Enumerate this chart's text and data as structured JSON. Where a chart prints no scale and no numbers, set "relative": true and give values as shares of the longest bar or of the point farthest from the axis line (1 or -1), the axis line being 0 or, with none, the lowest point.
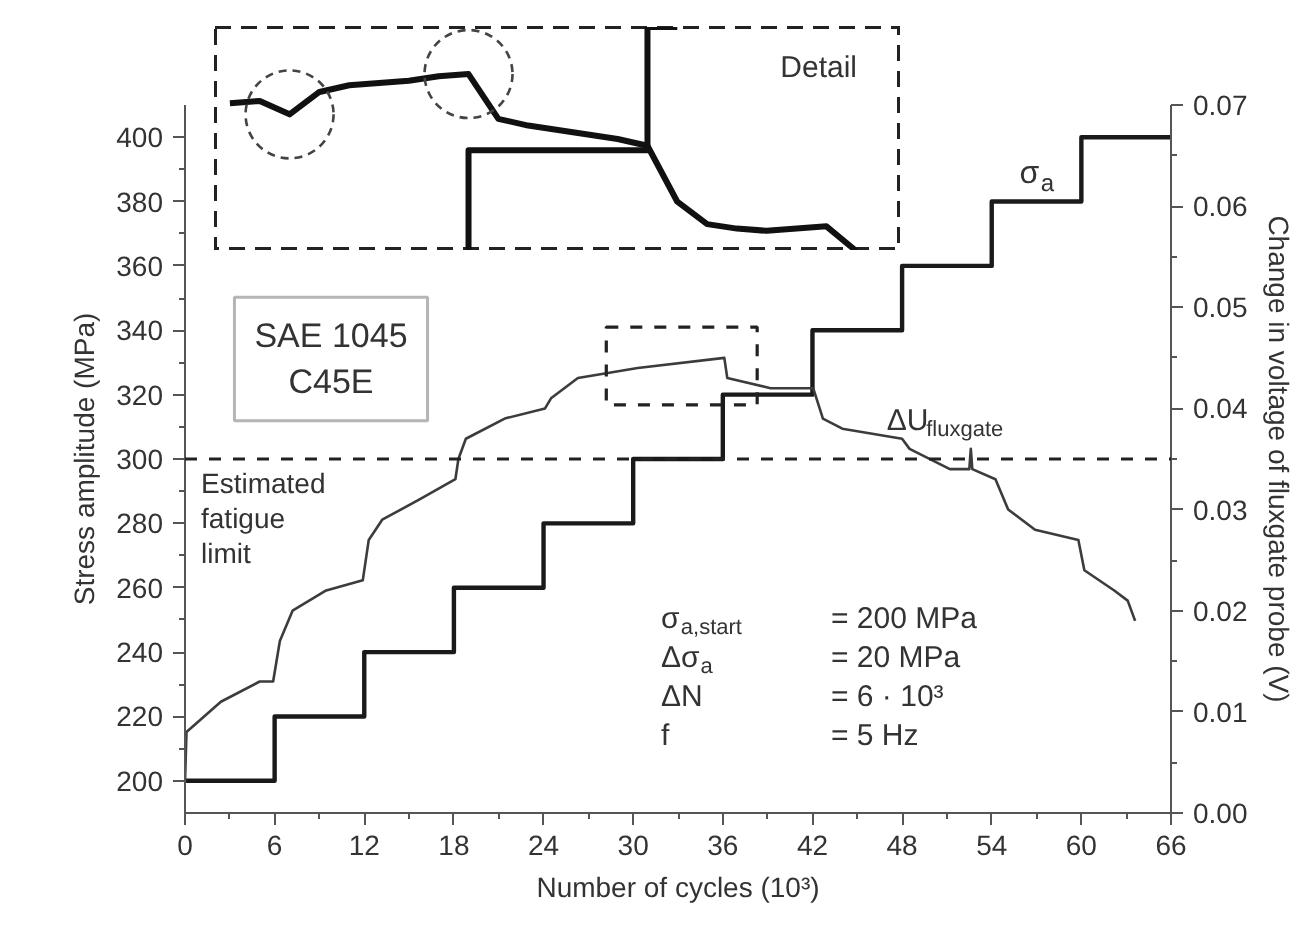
{
  "chart_data": [
    {
      "type": "line",
      "xlabel": "Number of cycles (10³)",
      "ylabel": "Stress amplitude (MPa)",
      "y2label": "Change in voltage of fluxgate probe (V)",
      "xlim": [
        0,
        66
      ],
      "xticks": [
        0,
        6,
        12,
        18,
        24,
        30,
        36,
        42,
        48,
        54,
        60,
        66
      ],
      "ylim": [
        190,
        410
      ],
      "yticks": [
        200,
        220,
        240,
        260,
        280,
        300,
        320,
        340,
        360,
        380,
        400
      ],
      "y2lim": [
        0,
        0.07
      ],
      "y2ticks": [
        {
          "value": 0,
          "label": "0.00"
        },
        0.01,
        0.02,
        0.03,
        0.04,
        0.05,
        0.06,
        0.07
      ],
      "marker": "none",
      "series": [
        {
          "name": "σ$_{a}$",
          "type": "step",
          "color": "#1a1a1a",
          "x": [
            0,
            6,
            12,
            18,
            24,
            30,
            36,
            42,
            48,
            54,
            60,
            66
          ],
          "values": [
            200,
            220,
            240,
            260,
            280,
            300,
            320,
            340,
            360,
            380,
            400,
            400
          ]
        },
        {
          "name": "ΔU$_{fluxgate}$",
          "axis": "y2",
          "color": "#3c3c3c",
          "x": [
            0,
            0.1,
            2.4,
            5.0,
            5.9,
            6.35,
            7.2,
            9.45,
            11.9,
            12.3,
            13.2,
            15.7,
            18.1,
            18.3,
            18.8,
            21.4,
            24.1,
            24.5,
            26.3,
            30.3,
            36.1,
            36.3,
            39.2,
            42.05,
            42.7,
            44.0,
            48.0,
            48.5,
            51.2,
            52.5,
            52.6,
            52.7,
            54.25,
            55.1,
            56.9,
            59.8,
            60.2,
            62.2,
            63.1,
            63.6
          ],
          "values": [
            0.003,
            0.008,
            0.011,
            0.013,
            0.013,
            0.017,
            0.02,
            0.022,
            0.023,
            0.027,
            0.029,
            0.031,
            0.033,
            0.035,
            0.037,
            0.039,
            0.04,
            0.041,
            0.043,
            0.044,
            0.045,
            0.043,
            0.042,
            0.042,
            0.039,
            0.038,
            0.037,
            0.036,
            0.034,
            0.034,
            0.036,
            0.034,
            0.033,
            0.03,
            0.028,
            0.027,
            0.024,
            0.022,
            0.021,
            0.019
          ]
        }
      ],
      "ref_lines": [
        {
          "axis": "y",
          "value": 300,
          "label": "Estimated\nfatigue\nlimit",
          "line_style": "dashed",
          "color": "#222222"
        }
      ],
      "annotations": [
        "SAE 1045\nC45E",
        "σ$_{a,start}$ = 200 MPa",
        "Δσ$_{a}$ = 20 MPa",
        "ΔN = 6 · 10³",
        "f = 5 Hz"
      ]
    },
    {
      "type": "line",
      "title": "Detail",
      "relative": true,
      "tick_labels": false,
      "line_style": "solid",
      "categories": [
        null,
        null,
        null,
        null,
        null,
        null,
        null,
        null,
        null,
        null,
        null,
        null,
        null,
        null,
        null,
        null,
        null,
        null,
        null,
        null,
        null,
        null,
        null
      ],
      "series": [
        {
          "color": "#111111",
          "values": [
            0.66,
            0.67,
            0.61,
            0.71,
            0.74,
            0.75,
            0.76,
            0.78,
            0.79,
            0.59,
            0.56,
            0.54,
            0.52,
            0.5,
            0.47,
            0.22,
            0.12,
            0.1,
            0.09,
            0.1,
            0.11,
            0,
            null
          ]
        },
        {
          "type": "step",
          "color": "#111111",
          "values": [
            null,
            null,
            null,
            null,
            null,
            null,
            null,
            null,
            0,
            0.45,
            0.45,
            0.45,
            0.45,
            0.45,
            0.45,
            1,
            null,
            null,
            null,
            null,
            null,
            null,
            null
          ]
        }
      ]
    }
  ]
}
